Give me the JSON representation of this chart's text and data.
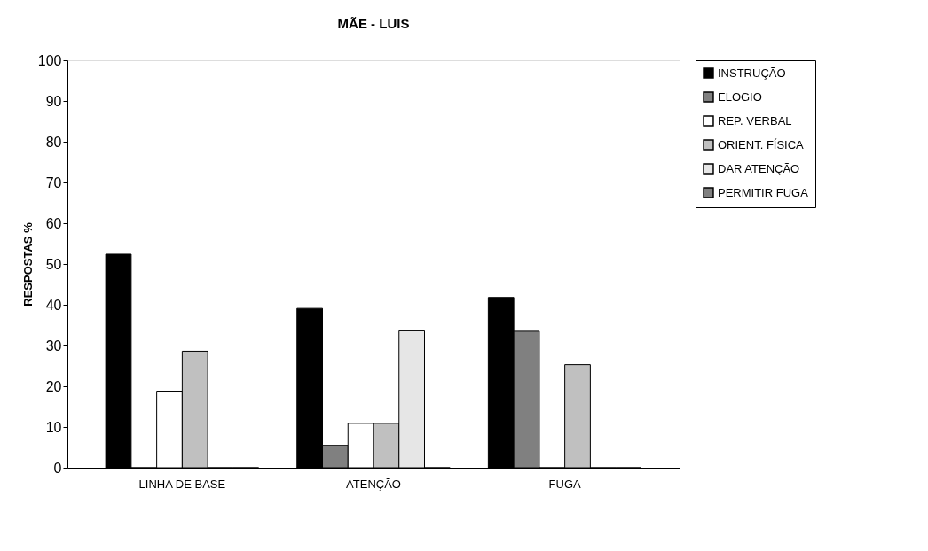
{
  "chart_data": {
    "type": "bar",
    "title": "MÃE - LUIS",
    "ylabel": "RESPOSTAS %",
    "categories": [
      "LINHA DE BASE",
      "ATENÇÃO",
      "FUGA"
    ],
    "series": [
      {
        "name": "INSTRUÇÃO",
        "color": "#000000",
        "values": [
          52.4,
          39.1,
          41.8
        ]
      },
      {
        "name": "ELOGIO",
        "color": "#808080",
        "values": [
          0,
          5.5,
          33.5
        ]
      },
      {
        "name": "REP. VERBAL",
        "color": "#ffffff",
        "values": [
          18.8,
          10.9,
          0
        ]
      },
      {
        "name": "ORIENT. FÍSICA",
        "color": "#c0c0c0",
        "values": [
          28.6,
          10.9,
          25.3
        ]
      },
      {
        "name": "DAR ATENÇÃO",
        "color": "#e6e6e6",
        "values": [
          0,
          33.6,
          0
        ]
      },
      {
        "name": "PERMITIR FUGA",
        "color": "#808080",
        "values": [
          0,
          0,
          0
        ]
      }
    ],
    "ylim": [
      0,
      100
    ],
    "yticks": [
      0,
      10,
      20,
      30,
      40,
      50,
      60,
      70,
      80,
      90,
      100
    ],
    "grid": false,
    "legend": "right"
  }
}
